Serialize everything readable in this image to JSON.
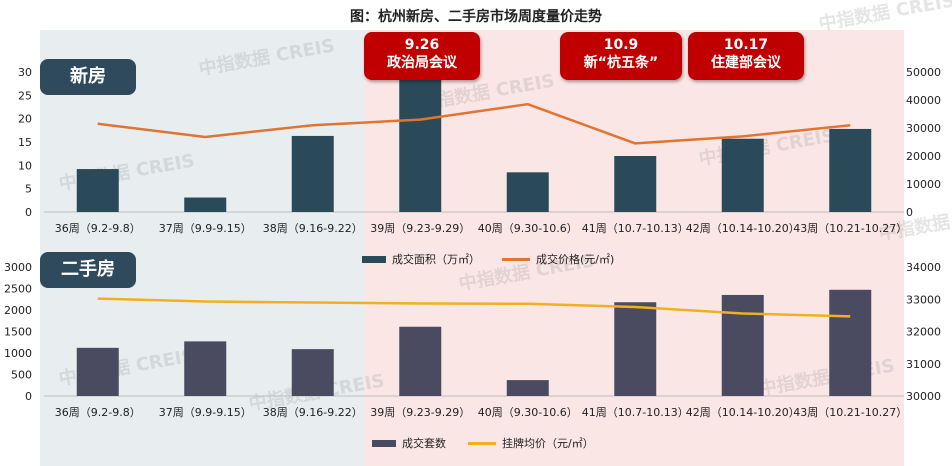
{
  "title": "图：杭州新房、二手房市场周度量价走势",
  "watermark": "中指数据 CREIS",
  "colors": {
    "new_bar": "#2a4a5a",
    "new_line": "#e07530",
    "sec_bar": "#4a4a60",
    "sec_line": "#f0b020",
    "bg_left": "#e8edf0",
    "bg_right": "#fbe6e6",
    "badge": "#c00000"
  },
  "events": [
    {
      "date": "9.26",
      "name": "政治局会议"
    },
    {
      "date": "10.9",
      "name": "新“杭五条”"
    },
    {
      "date": "10.17",
      "name": "住建部会议"
    }
  ],
  "chart_data": [
    {
      "type": "bar+line",
      "panel_label": "新房",
      "categories": [
        "36周（9.2-9.8）",
        "37周（9.9-9.15）",
        "38周（9.16-9.22）",
        "39周（9.23-9.29）",
        "40周（9.30-10.6）",
        "41周（10.7-10.13）",
        "42周（10.14-10.20）",
        "43周（10.21-10.27）"
      ],
      "y_left": {
        "min": 0,
        "max": 30,
        "ticks": [
          0,
          5,
          10,
          15,
          20,
          25,
          30
        ]
      },
      "y_right": {
        "min": 0,
        "max": 50000,
        "ticks": [
          0,
          10000,
          20000,
          30000,
          40000,
          50000
        ]
      },
      "series": [
        {
          "name": "成交面积（万㎡）",
          "kind": "bar",
          "axis": "left",
          "values": [
            9.2,
            3.1,
            16.3,
            29.5,
            8.5,
            12.0,
            15.7,
            17.8
          ]
        },
        {
          "name": "成交价格(元/㎡)",
          "kind": "line",
          "axis": "right",
          "values": [
            31500,
            26800,
            31000,
            33000,
            38500,
            24500,
            27000,
            31000
          ]
        }
      ]
    },
    {
      "type": "bar+line",
      "panel_label": "二手房",
      "categories": [
        "36周（9.2-9.8）",
        "37周（9.9-9.15）",
        "38周（9.16-9.22）",
        "39周（9.23-9.29）",
        "40周（9.30-10.6）",
        "41周（10.7-10.13）",
        "42周（10.14-10.20）",
        "43周（10.21-10.27）"
      ],
      "y_left": {
        "min": 0,
        "max": 3000,
        "ticks": [
          0,
          500,
          1000,
          1500,
          2000,
          2500,
          3000
        ]
      },
      "y_right": {
        "min": 30000,
        "max": 34000,
        "ticks": [
          30000,
          31000,
          32000,
          33000,
          34000
        ]
      },
      "series": [
        {
          "name": "成交套数",
          "kind": "bar",
          "axis": "left",
          "values": [
            1120,
            1270,
            1090,
            1610,
            370,
            2180,
            2350,
            2470
          ]
        },
        {
          "name": "挂牌均价（元/㎡）",
          "kind": "line",
          "axis": "right",
          "values": [
            33020,
            32930,
            32900,
            32870,
            32860,
            32760,
            32560,
            32470
          ]
        }
      ]
    }
  ]
}
